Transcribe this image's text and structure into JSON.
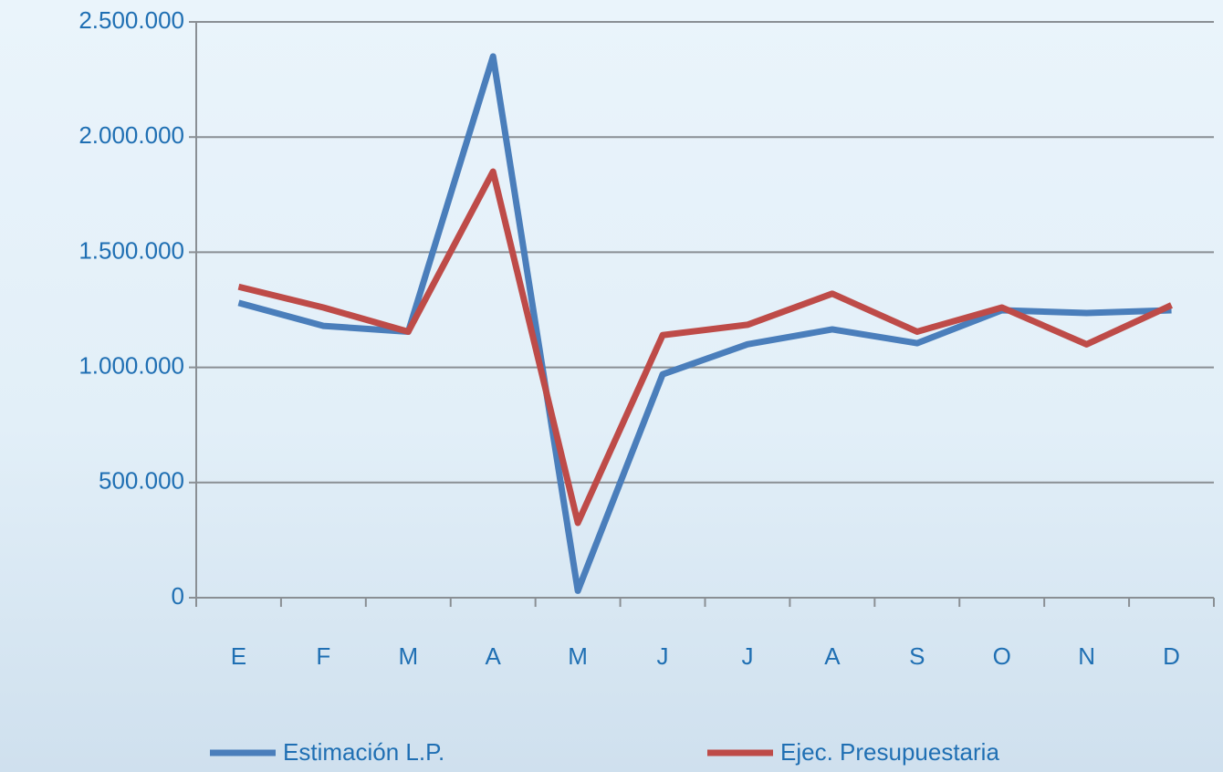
{
  "chart_data": {
    "type": "line",
    "categories": [
      "E",
      "F",
      "M",
      "A",
      "M",
      "J",
      "J",
      "A",
      "S",
      "O",
      "N",
      "D"
    ],
    "series": [
      {
        "name": "Estimación L.P.",
        "color": "#4a7ebb",
        "values": [
          1280000,
          1180000,
          1155000,
          2350000,
          30000,
          970000,
          1100000,
          1165000,
          1105000,
          1248000,
          1236000,
          1248000
        ]
      },
      {
        "name": "Ejec. Presupuestaria",
        "color": "#be4b48",
        "values": [
          1350000,
          1260000,
          1155000,
          1850000,
          325000,
          1140000,
          1185000,
          1320000,
          1155000,
          1260000,
          1100000,
          1270000
        ]
      }
    ],
    "ylim": [
      0,
      2500000
    ],
    "yticks": [
      0,
      {
        "value": 500000,
        "label": "500.000"
      },
      {
        "value": 1000000,
        "label": "1.000.000"
      },
      {
        "value": 1500000,
        "label": "1.500.000"
      },
      {
        "value": 2000000,
        "label": "2.000.000"
      },
      {
        "value": 2500000,
        "label": "2.500.000"
      }
    ],
    "grid": true,
    "legend": "bottom"
  }
}
